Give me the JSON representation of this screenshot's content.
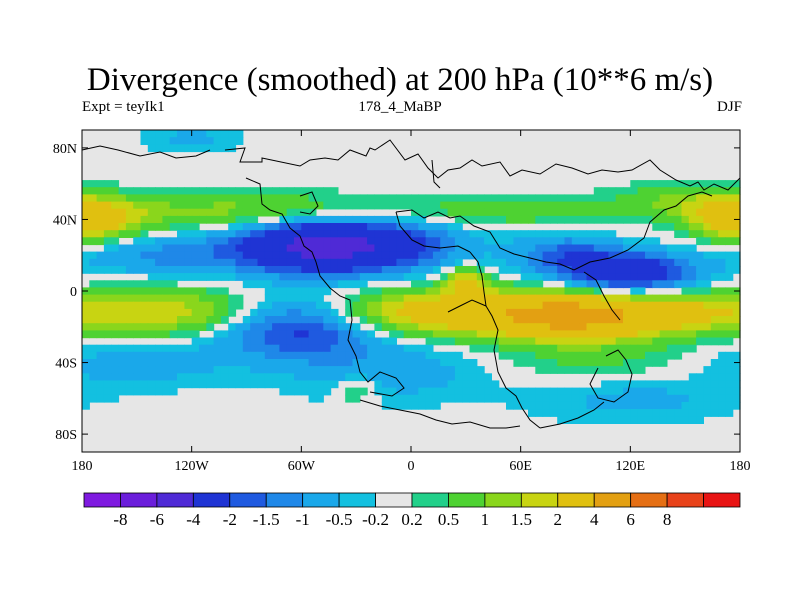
{
  "chart_data": {
    "type": "heatmap",
    "title": "Divergence (smoothed) at 200 hPa (10**6 m/s)",
    "subtitle_left": "Expt = teyIk1",
    "subtitle_center": "178_4_MaBP",
    "subtitle_right": "DJF",
    "x_ticks": [
      {
        "value": -180,
        "label": "180"
      },
      {
        "value": -120,
        "label": "120W"
      },
      {
        "value": -60,
        "label": "60W"
      },
      {
        "value": 0,
        "label": "0"
      },
      {
        "value": 60,
        "label": "60E"
      },
      {
        "value": 120,
        "label": "120E"
      },
      {
        "value": 180,
        "label": "180"
      }
    ],
    "y_ticks": [
      {
        "value": 80,
        "label": "80N"
      },
      {
        "value": 40,
        "label": "40N"
      },
      {
        "value": 0,
        "label": "0"
      },
      {
        "value": -40,
        "label": "40S"
      },
      {
        "value": -80,
        "label": "80S"
      }
    ],
    "xlim": [
      -180,
      180
    ],
    "ylim": [
      -90,
      90
    ],
    "colorbar": {
      "colors": [
        "#7f1ae0",
        "#6b1edb",
        "#4f2ad6",
        "#1f34d4",
        "#1f5ae0",
        "#1f88e8",
        "#1aa8ea",
        "#13c0e0",
        "#e6e6e6",
        "#22d08a",
        "#4ed232",
        "#8ad61c",
        "#c8d412",
        "#e0c010",
        "#e3a012",
        "#e56f14",
        "#e8421a",
        "#e81414"
      ],
      "labels": [
        "-8",
        "-6",
        "-4",
        "-2",
        "-1.5",
        "-1",
        "-0.5",
        "-0.2",
        "0.2",
        "0.5",
        "1",
        "1.5",
        "2",
        "4",
        "6",
        "8"
      ]
    },
    "field_features": [
      {
        "lon": -30,
        "lat": 25,
        "sx": 35,
        "sy": 10,
        "amp": -3.5
      },
      {
        "lon": -60,
        "lat": 25,
        "sx": 25,
        "sy": 10,
        "amp": -2.0
      },
      {
        "lon": -130,
        "lat": 20,
        "sx": 35,
        "sy": 8,
        "amp": -1.2
      },
      {
        "lon": 120,
        "lat": 10,
        "sx": 25,
        "sy": 8,
        "amp": -3.0
      },
      {
        "lon": 85,
        "lat": 20,
        "sx": 20,
        "sy": 8,
        "amp": -1.5
      },
      {
        "lon": -170,
        "lat": 40,
        "sx": 20,
        "sy": 8,
        "amp": 1.8
      },
      {
        "lon": 175,
        "lat": 40,
        "sx": 15,
        "sy": 8,
        "amp": 1.8
      },
      {
        "lon": -90,
        "lat": 45,
        "sx": 55,
        "sy": 7,
        "amp": 1.2
      },
      {
        "lon": 60,
        "lat": 45,
        "sx": 45,
        "sy": 6,
        "amp": 0.8
      },
      {
        "lon": 150,
        "lat": 50,
        "sx": 25,
        "sy": 7,
        "amp": 1.0
      },
      {
        "lon": -140,
        "lat": -12,
        "sx": 40,
        "sy": 9,
        "amp": 2.0
      },
      {
        "lon": 10,
        "lat": -12,
        "sx": 45,
        "sy": 9,
        "amp": 2.5
      },
      {
        "lon": 90,
        "lat": -14,
        "sx": 35,
        "sy": 9,
        "amp": 4.5
      },
      {
        "lon": 150,
        "lat": -12,
        "sx": 25,
        "sy": 8,
        "amp": 1.2
      },
      {
        "lon": -60,
        "lat": -20,
        "sx": 30,
        "sy": 12,
        "amp": -2.5
      },
      {
        "lon": -150,
        "lat": -40,
        "sx": 35,
        "sy": 10,
        "amp": -0.8
      },
      {
        "lon": -10,
        "lat": -45,
        "sx": 40,
        "sy": 12,
        "amp": -0.8
      },
      {
        "lon": 120,
        "lat": -60,
        "sx": 40,
        "sy": 10,
        "amp": -0.7
      },
      {
        "lon": -30,
        "lat": -55,
        "sx": 8,
        "sy": 5,
        "amp": 1.0
      },
      {
        "lon": 100,
        "lat": -40,
        "sx": 40,
        "sy": 10,
        "amp": 0.6
      },
      {
        "lon": 30,
        "lat": 5,
        "sx": 8,
        "sy": 6,
        "amp": 2.0
      },
      {
        "lon": -120,
        "lat": 85,
        "sx": 20,
        "sy": 6,
        "amp": -0.6
      }
    ]
  }
}
